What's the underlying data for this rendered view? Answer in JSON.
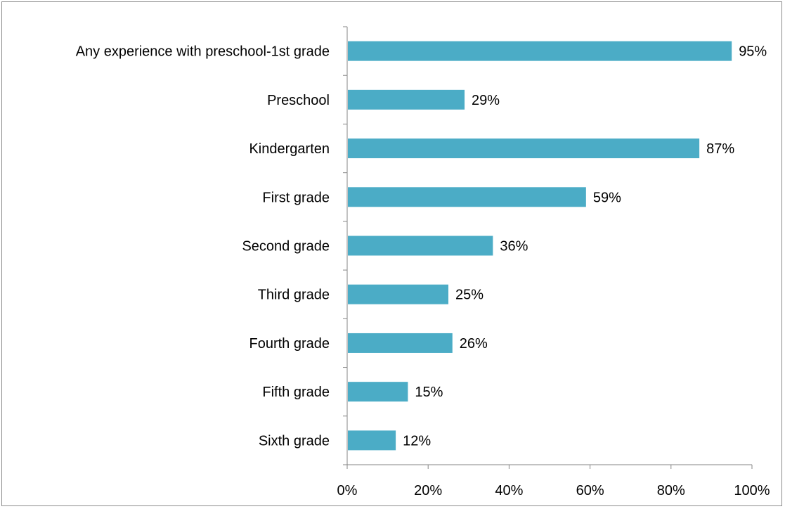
{
  "chart_data": {
    "type": "bar",
    "orientation": "horizontal",
    "categories": [
      "Any experience with preschool-1st grade",
      "Preschool",
      "Kindergarten",
      "First grade",
      "Second grade",
      "Third grade",
      "Fourth grade",
      "Fifth grade",
      "Sixth grade"
    ],
    "values": [
      95,
      29,
      87,
      59,
      36,
      25,
      26,
      15,
      12
    ],
    "value_labels": [
      "95%",
      "29%",
      "87%",
      "59%",
      "36%",
      "25%",
      "26%",
      "15%",
      "12%"
    ],
    "xlim": [
      0,
      100
    ],
    "x_ticks": [
      0,
      20,
      40,
      60,
      80,
      100
    ],
    "x_tick_labels": [
      "0%",
      "20%",
      "40%",
      "60%",
      "80%",
      "100%"
    ],
    "title": "",
    "xlabel": "",
    "ylabel": "",
    "grid": false,
    "legend": "none",
    "bar_color": "#4BACC6",
    "axis_color": "#868686"
  }
}
